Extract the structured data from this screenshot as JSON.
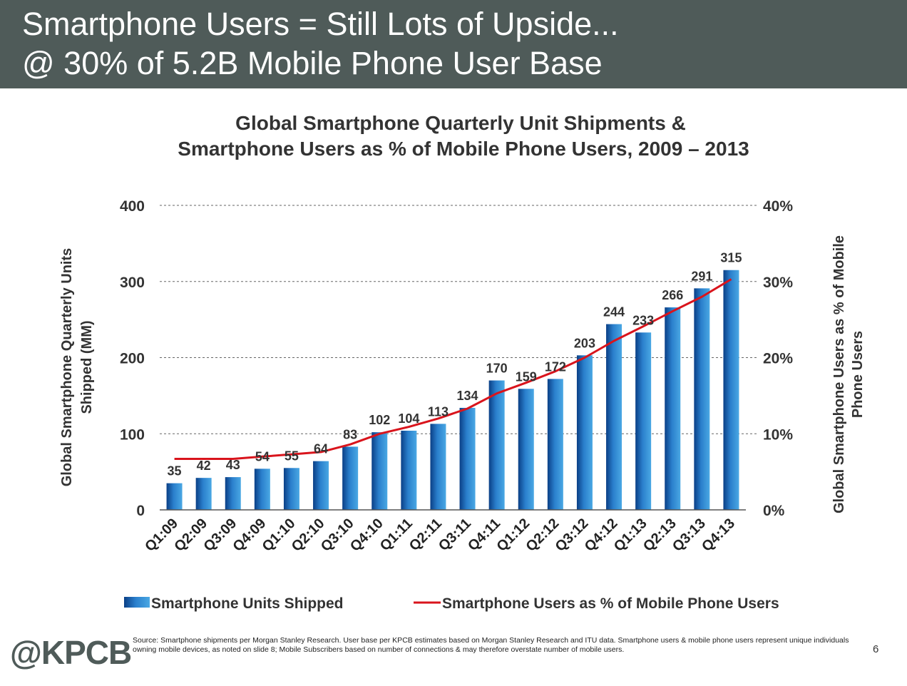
{
  "header": {
    "line1": "Smartphone Users = Still Lots of Upside...",
    "line2": "@ 30% of 5.2B Mobile Phone User Base"
  },
  "footer": {
    "logo": "@KPCB",
    "source": "Source: Smartphone shipments per Morgan Stanley Research. User base per KPCB estimates based on Morgan Stanley Research and ITU data. Smartphone users & mobile phone users represent unique individuals owning mobile devices, as noted on slide 8; Mobile Subscribers based on number of connections & may therefore overstate number of mobile users.",
    "page_number": "6"
  },
  "colors": {
    "header_bg": "#4f5b59",
    "bar_light": "#4aa8e4",
    "bar_dark": "#0a3f86",
    "line": "#d9141c"
  },
  "chart_data": {
    "type": "bar",
    "title_line1": "Global Smartphone Quarterly Unit Shipments &",
    "title_line2": "Smartphone Users as % of Mobile Phone Users, 2009 – 2013",
    "categories": [
      "Q1:09",
      "Q2:09",
      "Q3:09",
      "Q4:09",
      "Q1:10",
      "Q2:10",
      "Q3:10",
      "Q4:10",
      "Q1:11",
      "Q2:11",
      "Q3:11",
      "Q4:11",
      "Q1:12",
      "Q2:12",
      "Q3:12",
      "Q4:12",
      "Q1:13",
      "Q2:13",
      "Q3:13",
      "Q4:13"
    ],
    "ylabel": "Global Smartphone Quarterly Units Shipped (MM)",
    "ylabel_lines": [
      "Global Smartphone Quarterly Units",
      "Shipped (MM)"
    ],
    "y2label": "Global Smartphone Users as % of Mobile Phone Users",
    "y2label_lines": [
      "Global Smartphone Users as % of Mobile",
      "Phone Users"
    ],
    "ylim": [
      0,
      400
    ],
    "yticks": [
      "0",
      "100",
      "200",
      "300",
      "400"
    ],
    "y2lim": [
      0,
      40
    ],
    "y2ticks": [
      "0%",
      "10%",
      "20%",
      "30%",
      "40%"
    ],
    "grid": "horizontal dashed",
    "legend_position": "bottom",
    "series": [
      {
        "name": "Smartphone Units Shipped",
        "type": "bar",
        "axis": "left",
        "values": [
          35,
          42,
          43,
          54,
          55,
          64,
          83,
          102,
          104,
          113,
          134,
          170,
          159,
          172,
          203,
          244,
          233,
          266,
          291,
          315
        ]
      },
      {
        "name": "Smartphone Users as % of Mobile Phone Users",
        "type": "line",
        "axis": "right",
        "values": [
          6.7,
          6.7,
          6.7,
          7.0,
          7.3,
          7.6,
          8.6,
          10.0,
          10.9,
          12.0,
          13.3,
          15.3,
          16.7,
          18.2,
          20.0,
          22.2,
          24.1,
          26.1,
          28.0,
          30.3
        ]
      }
    ]
  }
}
